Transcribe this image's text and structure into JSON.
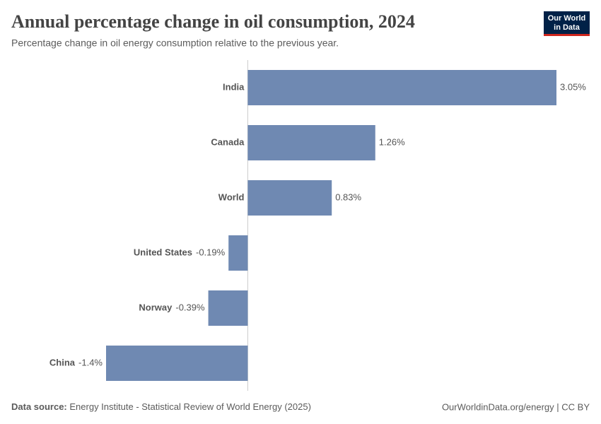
{
  "chart_data": {
    "type": "bar",
    "title": "Annual percentage change in oil consumption, 2024",
    "subtitle": "Percentage change in oil energy consumption relative to the previous year.",
    "categories": [
      "India",
      "Canada",
      "World",
      "United States",
      "Norway",
      "China"
    ],
    "values": [
      3.05,
      1.26,
      0.83,
      -0.19,
      -0.39,
      -1.4
    ],
    "value_labels": [
      "3.05%",
      "1.26%",
      "0.83%",
      "-0.19%",
      "-0.39%",
      "-1.4%"
    ],
    "color": "#6f89b2",
    "source_label": "Data source:",
    "source": "Energy Institute - Statistical Review of World Energy (2025)",
    "footer_right": "OurWorldinData.org/energy | CC BY"
  },
  "logo": {
    "lines": [
      "Our World",
      "in Data"
    ]
  }
}
